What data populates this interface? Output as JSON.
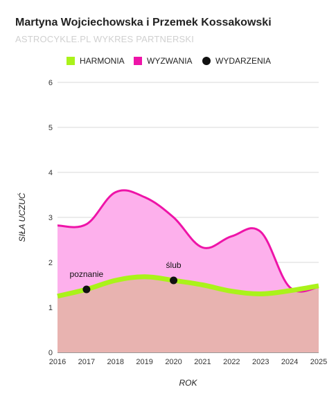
{
  "title": "Martyna Wojciechowska i Przemek Kossakowski",
  "subtitle": "ASTROCYKLE.PL WYKRES PARTNERSKI",
  "colors": {
    "harmonia_line": "#aaf21a",
    "harmonia_fill": "#e8b3b0",
    "wyzwania_line": "#ee14a8",
    "wyzwania_fill": "#fdb0ec",
    "event": "#111111",
    "grid": "#d9d9d9"
  },
  "chart_data": {
    "type": "area",
    "title": "Martyna Wojciechowska i Przemek Kossakowski",
    "subtitle": "ASTROCYKLE.PL WYKRES PARTNERSKI",
    "xlabel": "ROK",
    "ylabel": "SIŁA UCZUĆ",
    "xlim": [
      2016,
      2025
    ],
    "ylim": [
      0,
      6
    ],
    "x_ticks": [
      2016,
      2017,
      2018,
      2019,
      2020,
      2021,
      2022,
      2023,
      2024,
      2025
    ],
    "y_ticks": [
      0,
      1,
      2,
      3,
      4,
      5,
      6
    ],
    "grid": true,
    "legend_position": "top",
    "series": [
      {
        "name": "HARMONIA",
        "x": [
          2016,
          2017,
          2018,
          2019,
          2020,
          2021,
          2022,
          2023,
          2024,
          2025
        ],
        "values": [
          1.25,
          1.4,
          1.6,
          1.68,
          1.6,
          1.5,
          1.36,
          1.3,
          1.37,
          1.48
        ]
      },
      {
        "name": "WYZWANIA",
        "x": [
          2016,
          2017,
          2018,
          2019,
          2020,
          2021,
          2022,
          2023,
          2024,
          2025
        ],
        "values": [
          2.82,
          2.85,
          3.56,
          3.45,
          3.0,
          2.33,
          2.58,
          2.68,
          1.45,
          1.45
        ]
      }
    ],
    "events": {
      "name": "WYDARZENIA",
      "points": [
        {
          "label": "poznanie",
          "x": 2017,
          "y": 1.4
        },
        {
          "label": "ślub",
          "x": 2020,
          "y": 1.6
        }
      ]
    }
  }
}
